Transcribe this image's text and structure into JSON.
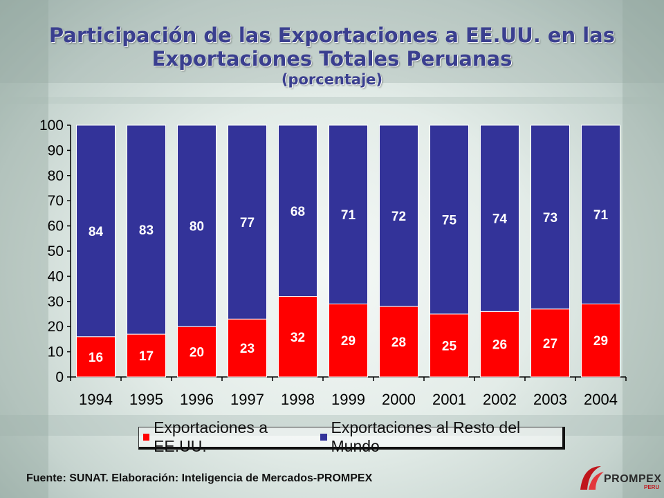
{
  "title": "Participación de las Exportaciones a EE.UU. en las Exportaciones Totales Peruanas",
  "subtitle": "(porcentaje)",
  "footer": "Fuente: SUNAT. Elaboración: Inteligencia de Mercados-PROMPEX",
  "logo": {
    "text": "PROMPEX",
    "sub": "PERU"
  },
  "colors": {
    "usa": "#ff0000",
    "rest": "#333399",
    "title": "#3a3f8f"
  },
  "chart_data": {
    "type": "bar",
    "stacked": true,
    "categories": [
      "1994",
      "1995",
      "1996",
      "1997",
      "1998",
      "1999",
      "2000",
      "2001",
      "2002",
      "2003",
      "2004"
    ],
    "series": [
      {
        "name": "Exportaciones a EE.UU.",
        "values": [
          16,
          17,
          20,
          23,
          32,
          29,
          28,
          25,
          26,
          27,
          29
        ]
      },
      {
        "name": "Exportaciones al Resto del Mundo",
        "values": [
          84,
          83,
          80,
          77,
          68,
          71,
          72,
          75,
          74,
          73,
          71
        ]
      }
    ],
    "yticks": [
      "0",
      "10",
      "20",
      "30",
      "40",
      "50",
      "60",
      "70",
      "80",
      "90",
      "100"
    ],
    "ylim": [
      0,
      100
    ],
    "legend_position": "bottom",
    "grid": false
  }
}
